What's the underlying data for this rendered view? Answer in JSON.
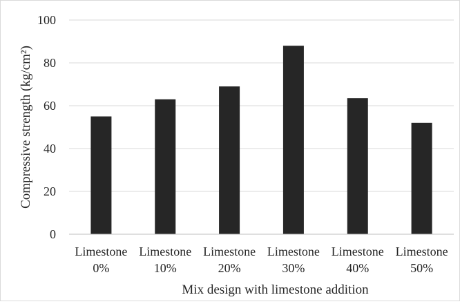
{
  "chart_data": {
    "type": "bar",
    "title": "",
    "xlabel": "Mix design with limestone addition",
    "ylabel": "Compressive strength (kg/cm²)",
    "categories": [
      [
        "Limestone",
        "0%"
      ],
      [
        "Limestone",
        "10%"
      ],
      [
        "Limestone",
        "20%"
      ],
      [
        "Limestone",
        "30%"
      ],
      [
        "Limestone",
        "40%"
      ],
      [
        "Limestone",
        "50%"
      ]
    ],
    "values": [
      55,
      63,
      69,
      88,
      63.5,
      52
    ],
    "ylim": [
      0,
      100
    ],
    "yticks": [
      "0",
      "20",
      "40",
      "60",
      "80",
      "100"
    ],
    "grid": true,
    "legend": "none",
    "colors": {
      "bar": "#262626",
      "grid": "#d9d9d9",
      "axis": "#bfbfbf"
    }
  }
}
